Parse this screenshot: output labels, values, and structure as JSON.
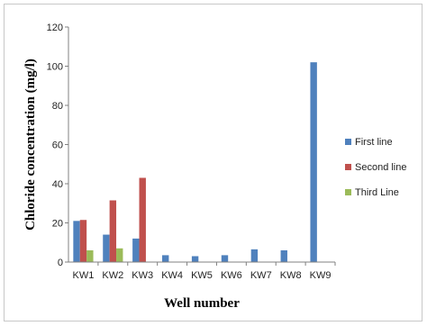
{
  "chart_data": {
    "type": "bar",
    "title": "",
    "xlabel": "Well number",
    "ylabel": "Chloride concentration (mg/l)",
    "ylim": [
      0,
      120
    ],
    "yticks": [
      "0",
      "20",
      "40",
      "60",
      "80",
      "100",
      "120"
    ],
    "categories": [
      "KW1",
      "KW2",
      "KW3",
      "KW4",
      "KW5",
      "KW6",
      "KW7",
      "KW8",
      "KW9"
    ],
    "grid": false,
    "legend_position": "right",
    "series": [
      {
        "name": "First line",
        "color": "#4f81bd",
        "values": [
          21,
          14,
          12,
          3.5,
          3,
          3.5,
          6.5,
          6,
          102
        ]
      },
      {
        "name": "Second line",
        "color": "#c0504d",
        "values": [
          21.5,
          31.5,
          43,
          null,
          null,
          null,
          null,
          null,
          null
        ]
      },
      {
        "name": "Third Line",
        "color": "#9bbb59",
        "values": [
          6,
          7,
          null,
          null,
          null,
          null,
          null,
          null,
          null
        ]
      }
    ]
  }
}
